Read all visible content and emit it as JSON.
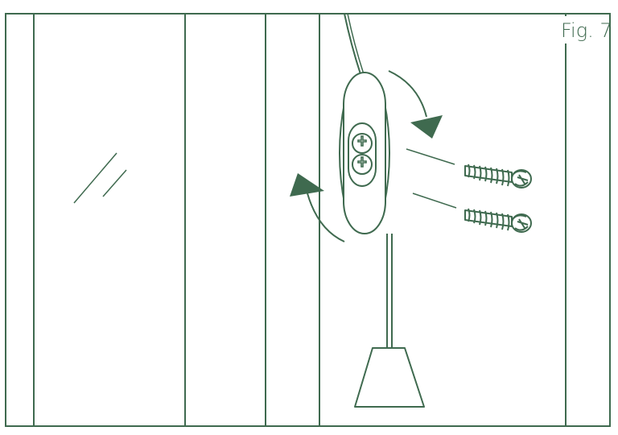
{
  "figure": {
    "label": "Fig. 7"
  },
  "colors": {
    "line": "#3f6a4f",
    "fill": "#3f6a4f",
    "background": "#ffffff"
  },
  "icons": {
    "screw": "screw-icon",
    "rotate_arrow": "rotate-arrow-icon"
  }
}
